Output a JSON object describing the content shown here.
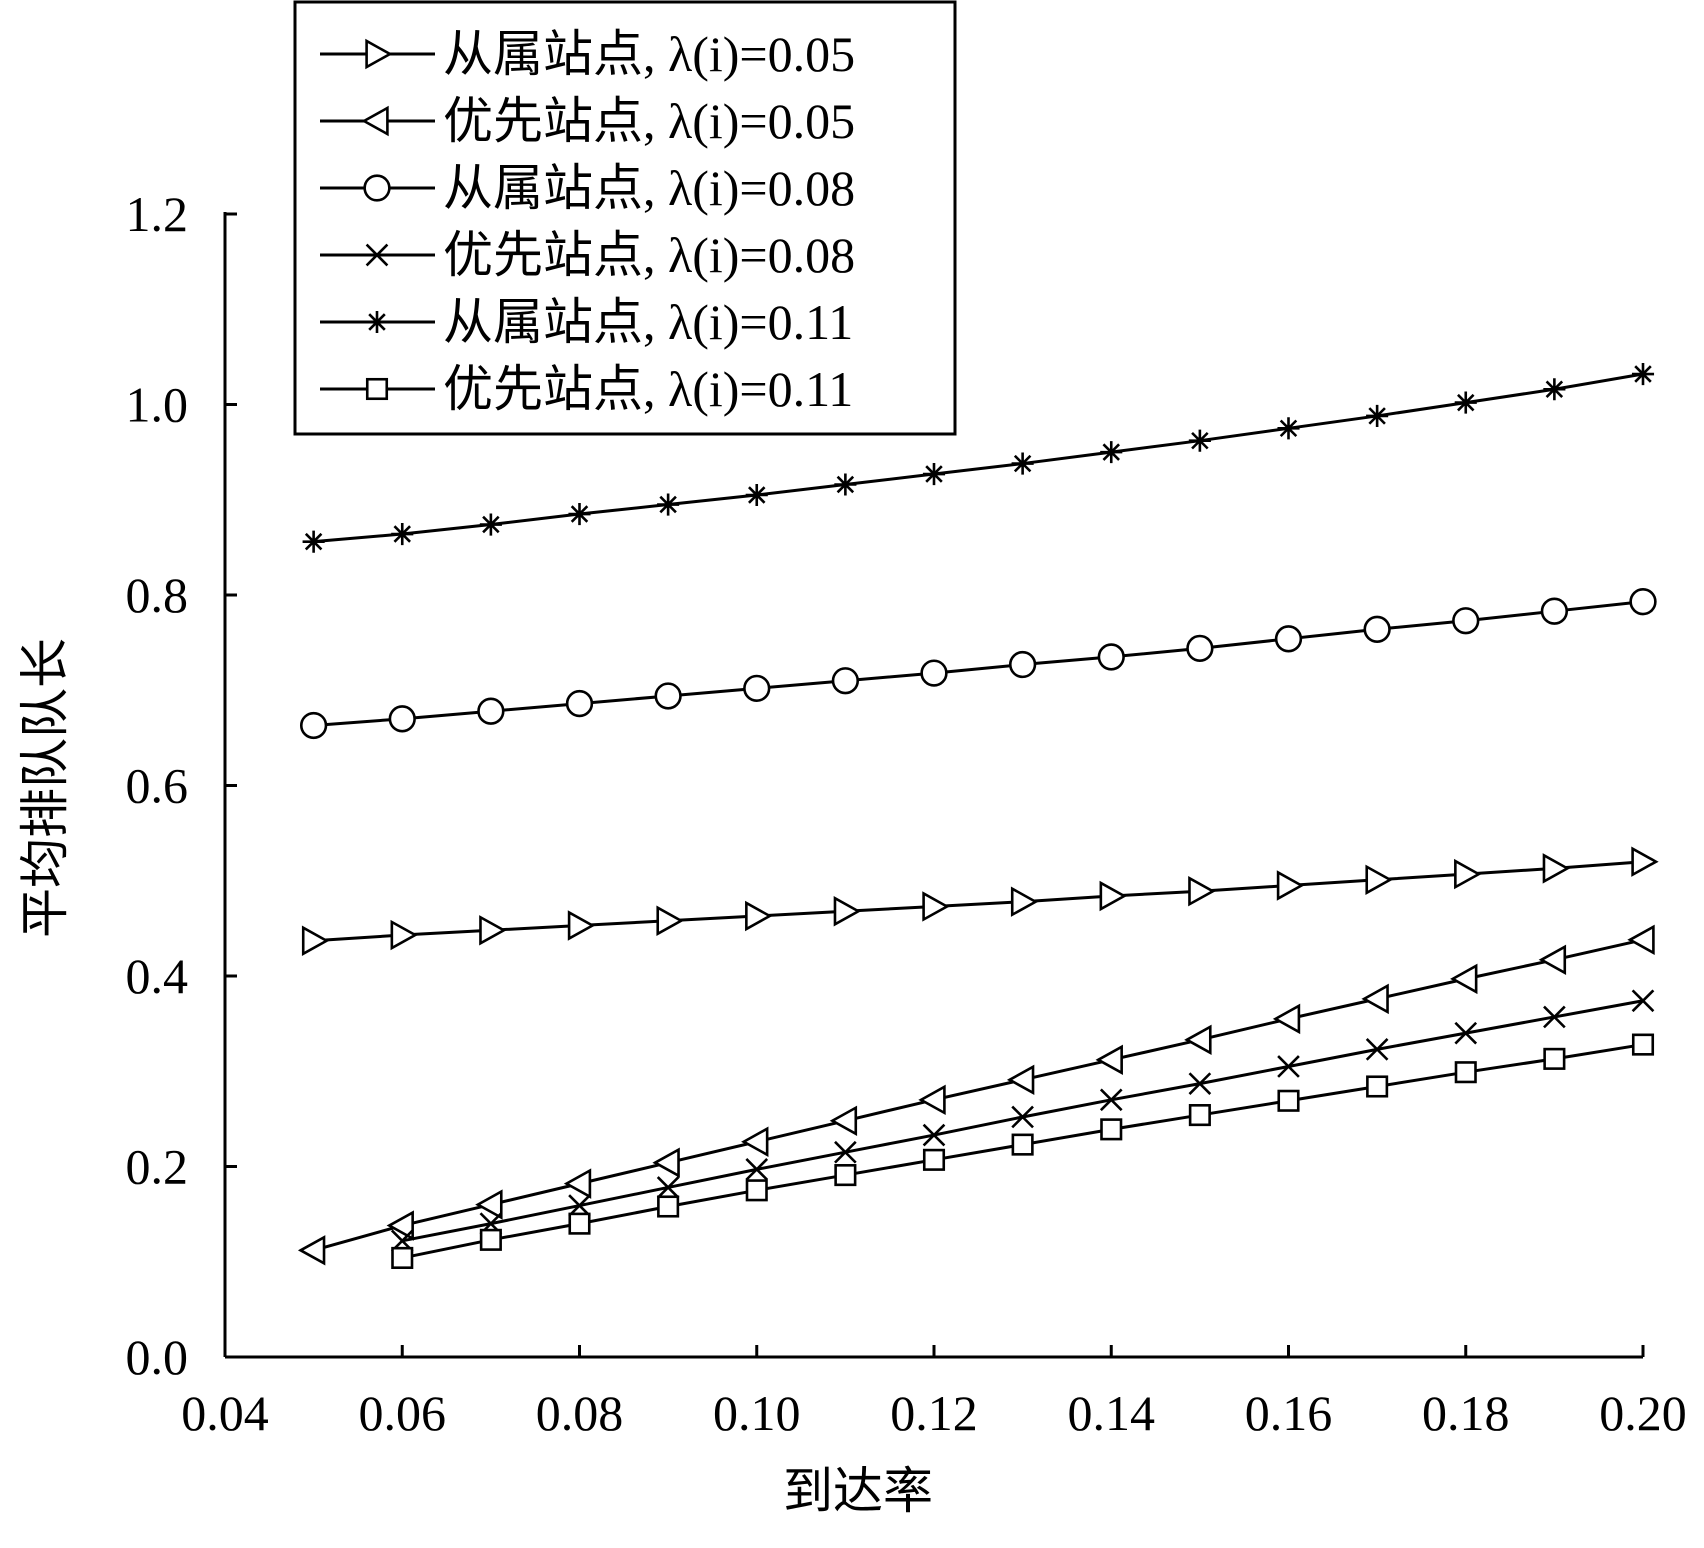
{
  "chart_data": {
    "type": "line",
    "xlabel": "到达率",
    "ylabel": "平均排队队长",
    "xlim": [
      0.04,
      0.2
    ],
    "ylim": [
      0.0,
      1.2
    ],
    "x_ticks": [
      "0.04",
      "0.06",
      "0.08",
      "0.10",
      "0.12",
      "0.14",
      "0.16",
      "0.18",
      "0.20"
    ],
    "y_ticks": [
      "0.0",
      "0.2",
      "0.4",
      "0.6",
      "0.8",
      "1.0",
      "1.2"
    ],
    "legend_position": "top-left",
    "grid": false,
    "line_color": "#000000",
    "series": [
      {
        "name": "从属站点, λ(i)=0.05",
        "marker": "triangle-right",
        "x": [
          0.05,
          0.06,
          0.07,
          0.08,
          0.09,
          0.1,
          0.11,
          0.12,
          0.13,
          0.14,
          0.15,
          0.16,
          0.17,
          0.18,
          0.19,
          0.2
        ],
        "values": [
          0.437,
          0.443,
          0.448,
          0.453,
          0.458,
          0.463,
          0.468,
          0.473,
          0.478,
          0.484,
          0.489,
          0.495,
          0.501,
          0.507,
          0.513,
          0.52
        ]
      },
      {
        "name": "优先站点, λ(i)=0.05",
        "marker": "triangle-left",
        "x": [
          0.05,
          0.06,
          0.07,
          0.08,
          0.09,
          0.1,
          0.11,
          0.12,
          0.13,
          0.14,
          0.15,
          0.16,
          0.17,
          0.18,
          0.19,
          0.2
        ],
        "values": [
          0.112,
          0.138,
          0.16,
          0.182,
          0.204,
          0.226,
          0.248,
          0.27,
          0.291,
          0.312,
          0.333,
          0.355,
          0.376,
          0.397,
          0.417,
          0.438
        ]
      },
      {
        "name": "从属站点, λ(i)=0.08",
        "marker": "circle",
        "x": [
          0.05,
          0.06,
          0.07,
          0.08,
          0.09,
          0.1,
          0.11,
          0.12,
          0.13,
          0.14,
          0.15,
          0.16,
          0.17,
          0.18,
          0.19,
          0.2
        ],
        "values": [
          0.663,
          0.67,
          0.678,
          0.686,
          0.694,
          0.702,
          0.71,
          0.718,
          0.727,
          0.735,
          0.744,
          0.754,
          0.764,
          0.773,
          0.783,
          0.793
        ]
      },
      {
        "name": "优先站点, λ(i)=0.08",
        "marker": "x",
        "x": [
          0.06,
          0.07,
          0.08,
          0.09,
          0.1,
          0.11,
          0.12,
          0.13,
          0.14,
          0.15,
          0.16,
          0.17,
          0.18,
          0.19,
          0.2
        ],
        "values": [
          0.122,
          0.14,
          0.159,
          0.178,
          0.197,
          0.215,
          0.233,
          0.252,
          0.27,
          0.287,
          0.305,
          0.323,
          0.34,
          0.357,
          0.374
        ]
      },
      {
        "name": "从属站点, λ(i)=0.11",
        "marker": "asterisk",
        "x": [
          0.05,
          0.06,
          0.07,
          0.08,
          0.09,
          0.1,
          0.11,
          0.12,
          0.13,
          0.14,
          0.15,
          0.16,
          0.17,
          0.18,
          0.19,
          0.2
        ],
        "values": [
          0.856,
          0.864,
          0.874,
          0.885,
          0.895,
          0.905,
          0.916,
          0.927,
          0.938,
          0.95,
          0.962,
          0.975,
          0.988,
          1.002,
          1.016,
          1.032
        ]
      },
      {
        "name": "优先站点, λ(i)=0.11",
        "marker": "square",
        "x": [
          0.06,
          0.07,
          0.08,
          0.09,
          0.1,
          0.11,
          0.12,
          0.13,
          0.14,
          0.15,
          0.16,
          0.17,
          0.18,
          0.19,
          0.2
        ],
        "values": [
          0.104,
          0.123,
          0.14,
          0.158,
          0.175,
          0.191,
          0.207,
          0.223,
          0.239,
          0.254,
          0.269,
          0.284,
          0.299,
          0.313,
          0.328
        ]
      }
    ]
  }
}
